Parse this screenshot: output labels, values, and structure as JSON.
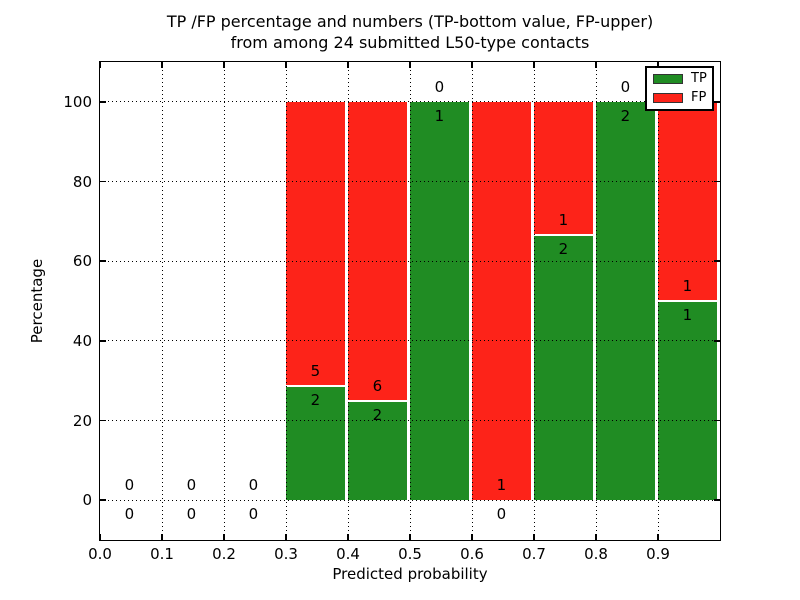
{
  "title": {
    "line1": "TP /FP percentage and numbers (TP-bottom value, FP-upper)",
    "line2": "from among 24 submitted L50-type contacts"
  },
  "axes": {
    "xlabel": "Predicted probability",
    "ylabel": "Percentage",
    "xticks": [
      "0.0",
      "0.1",
      "0.2",
      "0.3",
      "0.4",
      "0.5",
      "0.6",
      "0.7",
      "0.8",
      "0.9"
    ],
    "yticks": [
      "0",
      "20",
      "40",
      "60",
      "80",
      "100"
    ]
  },
  "legend": {
    "items": [
      {
        "label": "TP",
        "color": "#208c23"
      },
      {
        "label": "FP",
        "color": "#fd2319"
      }
    ]
  },
  "chart_data": {
    "type": "bar",
    "stacked": true,
    "title": "TP /FP percentage and numbers (TP-bottom value, FP-upper) from among 24 submitted L50-type contacts",
    "xlabel": "Predicted probability",
    "ylabel": "Percentage",
    "xlim": [
      0.0,
      1.0
    ],
    "ylim": [
      -10,
      110
    ],
    "grid": true,
    "grid_style": "dotted",
    "legend_position": "upper right",
    "bin_width": 0.1,
    "bar_width": 0.095,
    "bin_starts": [
      0.0,
      0.1,
      0.2,
      0.3,
      0.4,
      0.5,
      0.6,
      0.7,
      0.8,
      0.9
    ],
    "xgrid_values": [
      0.1,
      0.2,
      0.3,
      0.4,
      0.5,
      0.6,
      0.7,
      0.8,
      0.9
    ],
    "ygrid_values": [
      0,
      20,
      40,
      60,
      80,
      100
    ],
    "series": [
      {
        "name": "TP",
        "color": "#208c23",
        "counts": [
          0,
          0,
          0,
          2,
          2,
          1,
          0,
          2,
          2,
          1
        ]
      },
      {
        "name": "FP",
        "color": "#fd2319",
        "counts": [
          0,
          0,
          0,
          5,
          6,
          0,
          1,
          1,
          0,
          1
        ]
      }
    ],
    "tp_percentages": [
      0,
      0,
      0,
      28.57,
      25.0,
      100.0,
      0,
      66.67,
      100.0,
      50.0
    ],
    "total_contacts": 24
  }
}
